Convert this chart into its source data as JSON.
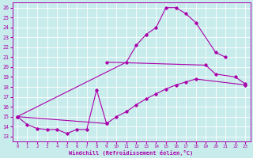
{
  "xlabel": "Windchill (Refroidissement éolien,°C)",
  "background_color": "#c8ecec",
  "grid_color": "#ffffff",
  "line_color": "#aa00aa",
  "marker": "D",
  "markersize": 1.8,
  "linewidth": 0.8,
  "xlim": [
    -0.5,
    23.5
  ],
  "ylim": [
    12.5,
    26.5
  ],
  "xticks": [
    0,
    1,
    2,
    3,
    4,
    5,
    6,
    7,
    8,
    9,
    10,
    11,
    12,
    13,
    14,
    15,
    16,
    17,
    18,
    19,
    20,
    21,
    22,
    23
  ],
  "yticks": [
    13,
    14,
    15,
    16,
    17,
    18,
    19,
    20,
    21,
    22,
    23,
    24,
    25,
    26
  ],
  "series": [
    {
      "x": [
        0,
        1,
        2,
        3,
        4,
        5,
        6,
        7,
        8,
        9
      ],
      "y": [
        15.0,
        14.2,
        13.8,
        13.7,
        13.7,
        13.3,
        13.7,
        13.7,
        17.7,
        14.3
      ]
    },
    {
      "x": [
        0,
        9,
        10,
        11,
        12,
        13,
        14,
        15,
        16,
        17,
        18,
        23
      ],
      "y": [
        15.0,
        14.3,
        15.0,
        15.5,
        16.2,
        16.8,
        17.3,
        17.8,
        18.2,
        18.5,
        18.8,
        18.2
      ]
    },
    {
      "x": [
        0,
        11,
        12,
        13,
        14,
        15,
        16,
        17,
        18,
        20,
        21
      ],
      "y": [
        15.0,
        20.5,
        22.2,
        23.3,
        24.0,
        26.0,
        26.0,
        25.4,
        24.5,
        21.5,
        21.0
      ]
    },
    {
      "x": [
        9,
        19,
        20,
        22,
        23
      ],
      "y": [
        20.5,
        20.2,
        19.3,
        19.0,
        18.3
      ]
    }
  ]
}
